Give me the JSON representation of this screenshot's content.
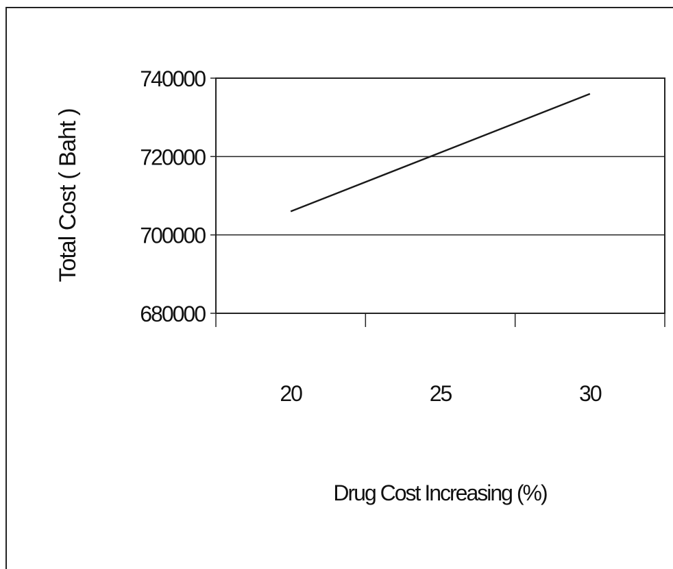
{
  "chart_data": {
    "type": "line",
    "title": "",
    "xlabel": "Drug Cost Increasing (%)",
    "ylabel": "Total Cost ( Baht )",
    "x": [
      20,
      25,
      30
    ],
    "series": [
      {
        "values": [
          706000,
          721000,
          736000
        ]
      }
    ],
    "x_tick_labels": [
      "20",
      "25",
      "30"
    ],
    "y_ticks": [
      680000,
      700000,
      720000,
      740000
    ],
    "y_tick_labels": [
      "680000",
      "700000",
      "720000",
      "740000"
    ],
    "ylim": [
      680000,
      740000
    ],
    "grid": "horizontal",
    "legend": "none",
    "line_color": "#1a1a1a"
  }
}
